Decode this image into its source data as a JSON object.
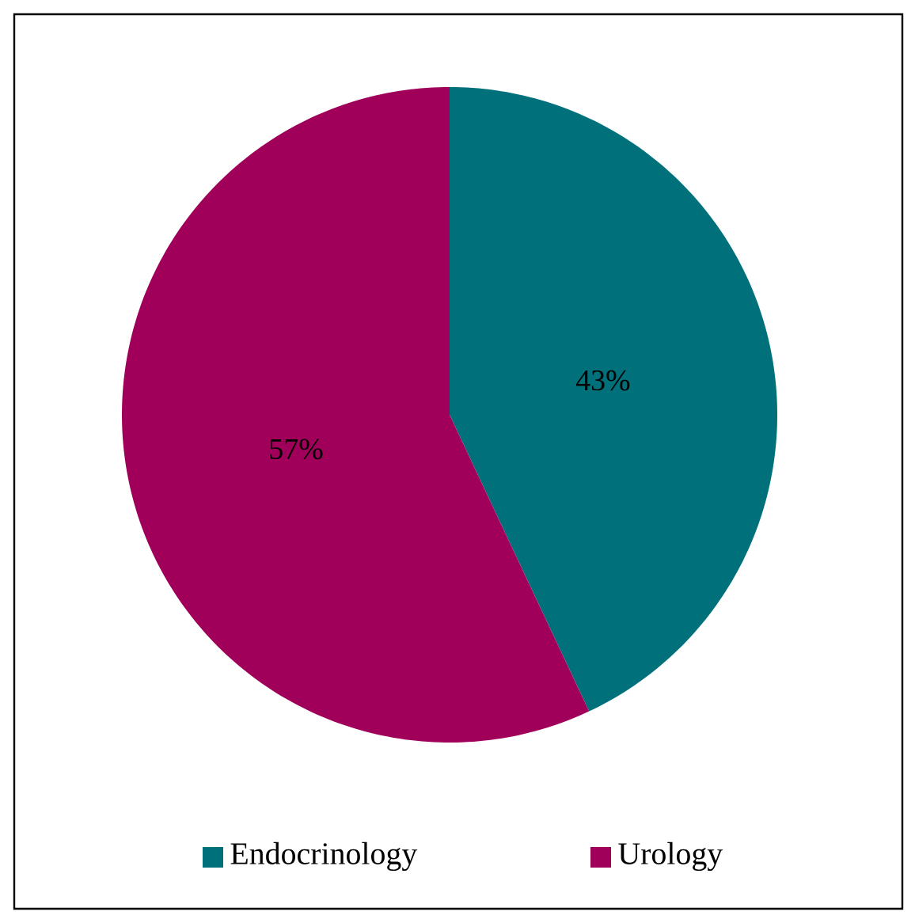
{
  "chart_data": {
    "type": "pie",
    "categories": [
      "Endocrinology",
      "Urology"
    ],
    "values": [
      43,
      57
    ],
    "colors": [
      "#00707a",
      "#a0005a"
    ],
    "value_labels": [
      "43%",
      "57%"
    ],
    "legend": "bottom"
  }
}
